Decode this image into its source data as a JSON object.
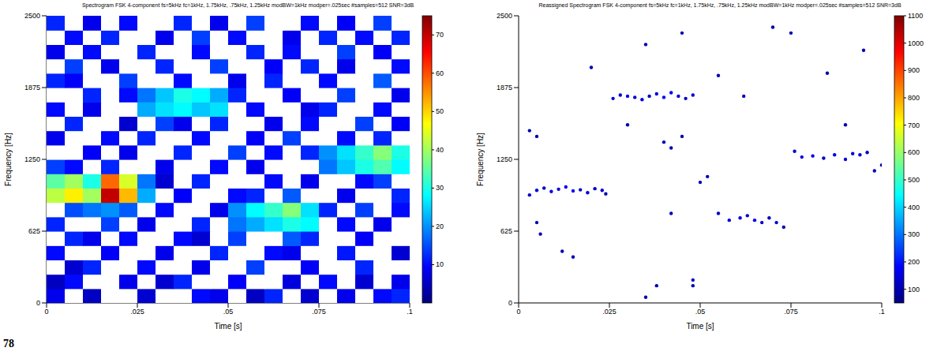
{
  "page_label": "78",
  "chart_data": [
    {
      "type": "heatmap",
      "title": "Spectrogram FSK 4-component fs=5kHz fc=1kHz, 1.75kHz, .75kHz, 1.25kHz modBW=1kHz modper=.025sec #samples=512 SNR=3dB",
      "x_label": "Time [s]",
      "y_label": "Frequency [Hz]",
      "xlim": [
        0,
        0.1
      ],
      "ylim": [
        0,
        2500
      ],
      "xticks": [
        0,
        {
          "value": 0.025,
          "label": ".025"
        },
        {
          "value": 0.05,
          "label": ".05"
        },
        {
          "value": 0.075,
          "label": ".075"
        },
        {
          "value": 0.1,
          "label": ".1"
        }
      ],
      "yticks": [
        0,
        625,
        1250,
        1875,
        2500
      ],
      "x": [
        0.0025,
        0.0075,
        0.0125,
        0.0175,
        0.0225,
        0.0275,
        0.0325,
        0.0375,
        0.0425,
        0.0475,
        0.0525,
        0.0575,
        0.0625,
        0.0675,
        0.0725,
        0.0775,
        0.0825,
        0.0875,
        0.0925,
        0.0975
      ],
      "y": [
        62.5,
        187.5,
        312.5,
        437.5,
        562.5,
        687.5,
        812.5,
        937.5,
        1062.5,
        1187.5,
        1312.5,
        1437.5,
        1562.5,
        1687.5,
        1812.5,
        1937.5,
        2062.5,
        2187.5,
        2312.5,
        2437.5
      ],
      "z": [
        [
          8,
          0,
          5,
          0,
          0,
          6,
          0,
          0,
          10,
          8,
          0,
          5,
          12,
          0,
          6,
          0,
          8,
          0,
          10,
          12
        ],
        [
          5,
          10,
          0,
          0,
          8,
          0,
          6,
          12,
          0,
          0,
          9,
          0,
          0,
          7,
          0,
          10,
          0,
          6,
          0,
          8
        ],
        [
          0,
          6,
          12,
          0,
          0,
          10,
          0,
          0,
          8,
          0,
          0,
          14,
          0,
          0,
          9,
          0,
          0,
          12,
          0,
          0
        ],
        [
          10,
          0,
          0,
          9,
          0,
          0,
          8,
          0,
          0,
          12,
          0,
          0,
          10,
          8,
          0,
          0,
          11,
          0,
          0,
          6
        ],
        [
          0,
          12,
          8,
          0,
          10,
          0,
          0,
          10,
          6,
          0,
          14,
          0,
          0,
          16,
          12,
          0,
          0,
          9,
          0,
          0
        ],
        [
          12,
          0,
          0,
          14,
          0,
          8,
          0,
          0,
          12,
          0,
          18,
          22,
          26,
          30,
          28,
          0,
          10,
          0,
          8,
          0
        ],
        [
          0,
          15,
          18,
          20,
          16,
          0,
          10,
          0,
          0,
          8,
          20,
          28,
          32,
          38,
          26,
          12,
          0,
          14,
          0,
          10
        ],
        [
          42,
          48,
          40,
          70,
          52,
          22,
          0,
          9,
          0,
          0,
          10,
          12,
          0,
          16,
          0,
          0,
          8,
          0,
          0,
          12
        ],
        [
          35,
          40,
          30,
          58,
          44,
          18,
          6,
          0,
          12,
          0,
          0,
          0,
          10,
          0,
          8,
          0,
          0,
          10,
          14,
          0
        ],
        [
          14,
          10,
          0,
          12,
          0,
          0,
          8,
          0,
          0,
          10,
          0,
          8,
          0,
          0,
          0,
          18,
          24,
          30,
          34,
          28
        ],
        [
          0,
          0,
          9,
          0,
          8,
          0,
          0,
          12,
          0,
          0,
          14,
          0,
          10,
          0,
          12,
          20,
          26,
          32,
          38,
          30
        ],
        [
          8,
          0,
          0,
          10,
          0,
          12,
          0,
          0,
          10,
          0,
          0,
          9,
          0,
          14,
          0,
          0,
          10,
          0,
          12,
          0
        ],
        [
          0,
          12,
          0,
          0,
          6,
          0,
          14,
          8,
          0,
          12,
          0,
          0,
          8,
          0,
          10,
          0,
          0,
          14,
          0,
          9
        ],
        [
          10,
          0,
          8,
          0,
          0,
          22,
          26,
          28,
          24,
          26,
          0,
          10,
          0,
          0,
          8,
          12,
          0,
          0,
          10,
          0
        ],
        [
          0,
          0,
          12,
          0,
          10,
          18,
          24,
          30,
          28,
          22,
          12,
          0,
          0,
          9,
          0,
          0,
          14,
          0,
          0,
          8
        ],
        [
          12,
          9,
          0,
          0,
          14,
          0,
          0,
          10,
          0,
          0,
          8,
          0,
          12,
          0,
          0,
          10,
          0,
          0,
          16,
          0
        ],
        [
          0,
          14,
          0,
          8,
          0,
          0,
          12,
          0,
          0,
          14,
          0,
          0,
          9,
          0,
          12,
          0,
          8,
          0,
          0,
          10
        ],
        [
          8,
          0,
          10,
          0,
          0,
          12,
          0,
          0,
          10,
          0,
          0,
          12,
          0,
          10,
          0,
          0,
          14,
          0,
          9,
          0
        ],
        [
          0,
          10,
          0,
          12,
          0,
          0,
          8,
          0,
          14,
          0,
          10,
          0,
          0,
          8,
          0,
          12,
          0,
          10,
          0,
          12
        ],
        [
          12,
          0,
          8,
          0,
          10,
          0,
          0,
          12,
          0,
          8,
          0,
          14,
          0,
          0,
          10,
          0,
          9,
          0,
          14,
          0
        ]
      ],
      "zlim": [
        0,
        75
      ],
      "zticks": [
        10,
        20,
        30,
        40,
        50,
        60,
        70
      ]
    },
    {
      "type": "scatter",
      "title": "Reassigned Spectrogram FSK 4-component fs=5kHz fc=1kHz, 1.75kHz, .75kHz, 1.25kHz modBW=1kHz modper=.025sec #samples=512 SNR=3dB",
      "x_label": "Time [s]",
      "y_label": "Frequency [Hz]",
      "xlim": [
        0,
        0.1
      ],
      "ylim": [
        0,
        2500
      ],
      "xticks": [
        0,
        {
          "value": 0.025,
          "label": ".025"
        },
        {
          "value": 0.05,
          "label": ".05"
        },
        {
          "value": 0.075,
          "label": ".075"
        },
        {
          "value": 0.1,
          "label": ".1"
        }
      ],
      "yticks": [
        0,
        625,
        1250,
        1875,
        2500
      ],
      "x": [
        0.003,
        0.005,
        0.007,
        0.009,
        0.011,
        0.013,
        0.015,
        0.017,
        0.019,
        0.021,
        0.023,
        0.024,
        0.026,
        0.028,
        0.03,
        0.032,
        0.034,
        0.036,
        0.038,
        0.04,
        0.042,
        0.044,
        0.046,
        0.048,
        0.055,
        0.058,
        0.061,
        0.063,
        0.065,
        0.067,
        0.069,
        0.071,
        0.073,
        0.076,
        0.078,
        0.081,
        0.084,
        0.087,
        0.09,
        0.092,
        0.094,
        0.096,
        0.003,
        0.005,
        0.005,
        0.006,
        0.012,
        0.015,
        0.02,
        0.03,
        0.035,
        0.04,
        0.042,
        0.045,
        0.045,
        0.048,
        0.048,
        0.038,
        0.035,
        0.042,
        0.05,
        0.052,
        0.055,
        0.062,
        0.07,
        0.075,
        0.085,
        0.09,
        0.095,
        0.098,
        0.1
      ],
      "y": [
        940,
        980,
        1000,
        970,
        990,
        1010,
        975,
        985,
        960,
        995,
        980,
        950,
        1780,
        1810,
        1800,
        1790,
        1770,
        1800,
        1820,
        1790,
        1830,
        1800,
        1780,
        1810,
        780,
        720,
        740,
        760,
        720,
        700,
        740,
        700,
        660,
        1320,
        1270,
        1280,
        1260,
        1290,
        1250,
        1300,
        1290,
        1310,
        1500,
        1450,
        700,
        600,
        450,
        400,
        2050,
        1550,
        2250,
        1400,
        1350,
        1450,
        2350,
        200,
        150,
        150,
        50,
        780,
        1050,
        1100,
        1980,
        1800,
        2400,
        2350,
        2000,
        1550,
        2200,
        1150,
        1200
      ],
      "values": [
        130,
        150,
        120,
        170,
        140,
        160,
        180,
        130,
        150,
        120,
        140,
        110,
        140,
        120,
        160,
        130,
        150,
        120,
        140,
        170,
        160,
        130,
        120,
        140,
        120,
        130,
        150,
        140,
        160,
        130,
        120,
        140,
        110,
        130,
        150,
        140,
        120,
        160,
        140,
        130,
        150,
        120,
        100,
        100,
        110,
        100,
        100,
        110,
        100,
        100,
        100,
        110,
        100,
        100,
        100,
        120,
        110,
        100,
        100,
        110,
        100,
        100,
        100,
        110,
        100,
        100,
        100,
        100,
        100,
        110,
        100
      ],
      "marker": "dot",
      "zlim": [
        50,
        1100
      ],
      "zticks": [
        100,
        200,
        300,
        400,
        500,
        600,
        700,
        800,
        900,
        1000,
        1100
      ]
    }
  ]
}
